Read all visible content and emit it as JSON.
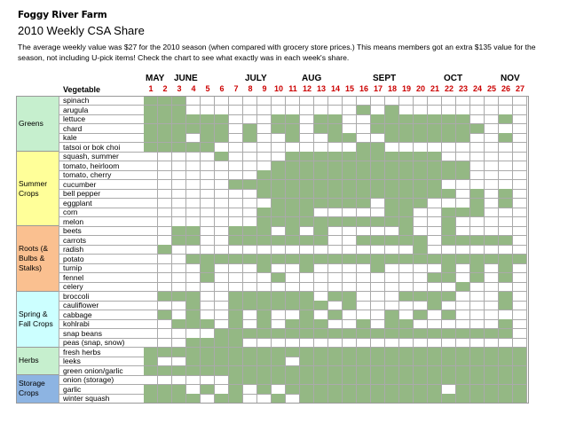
{
  "header": {
    "farm_name": "Foggy River Farm",
    "title": "2010 Weekly CSA Share",
    "description": "The average weekly value was $27 for the 2010 season (when compared with grocery store prices.) This means members got an extra $135 value for the season, not including U-pick items! Check the chart to see what exactly was in each week's share."
  },
  "table": {
    "vegetable_header": "Vegetable",
    "months": [
      {
        "label": "MAY",
        "week": 1
      },
      {
        "label": "JUNE",
        "week": 3
      },
      {
        "label": "JULY",
        "week": 8
      },
      {
        "label": "AUG",
        "week": 12
      },
      {
        "label": "SEPT",
        "week": 17
      },
      {
        "label": "OCT",
        "week": 22
      },
      {
        "label": "NOV",
        "week": 26
      }
    ],
    "weeks": [
      "1",
      "2",
      "3",
      "4",
      "5",
      "6",
      "7",
      "8",
      "9",
      "10",
      "11",
      "12",
      "13",
      "14",
      "15",
      "16",
      "17",
      "18",
      "19",
      "20",
      "21",
      "22",
      "23",
      "24",
      "25",
      "26",
      "27"
    ],
    "colors": {
      "shared": "#94b884",
      "grid": "#aaaaaa",
      "week_numbers": "#cc0000"
    },
    "categories": [
      {
        "name": "Greens",
        "color": "#c6efce",
        "rows": 6
      },
      {
        "name": "Summer Crops",
        "color": "#ffff99",
        "rows": 8
      },
      {
        "name": "Roots (& Bulbs & Stalks)",
        "color": "#fac090",
        "rows": 7
      },
      {
        "name": "Spring & Fall Crops",
        "color": "#ccffff",
        "rows": 6
      },
      {
        "name": "Herbs",
        "color": "#c6efce",
        "rows": 3
      },
      {
        "name": "Storage Crops",
        "color": "#8db4e2",
        "rows": 3
      }
    ],
    "rows": [
      {
        "name": "spinach",
        "weeks": [
          1,
          2,
          3
        ]
      },
      {
        "name": "arugula",
        "weeks": [
          1,
          2,
          3,
          16,
          18
        ]
      },
      {
        "name": "lettuce",
        "weeks": [
          1,
          2,
          3,
          4,
          5,
          6,
          10,
          11,
          13,
          14,
          17,
          18,
          19,
          20,
          21,
          22,
          23,
          26
        ]
      },
      {
        "name": "chard",
        "weeks": [
          1,
          2,
          3,
          4,
          5,
          6,
          8,
          10,
          11,
          13,
          14,
          17,
          18,
          19,
          20,
          21,
          22,
          23,
          24
        ]
      },
      {
        "name": "kale",
        "weeks": [
          1,
          2,
          3,
          5,
          6,
          8,
          11,
          14,
          15,
          18,
          19,
          20,
          21,
          22,
          23,
          26
        ]
      },
      {
        "name": "tatsoi or bok choi",
        "weeks": [
          1,
          2,
          3,
          4,
          5,
          16,
          17
        ]
      },
      {
        "name": "squash, summer",
        "weeks": [
          6,
          11,
          12,
          13,
          14,
          15,
          16,
          17,
          18,
          19,
          20,
          21
        ]
      },
      {
        "name": "tomato, heirloom",
        "weeks": [
          10,
          11,
          12,
          13,
          14,
          15,
          16,
          17,
          18,
          19,
          20,
          21,
          22,
          23
        ]
      },
      {
        "name": "tomato, cherry",
        "weeks": [
          9,
          10,
          11,
          12,
          13,
          14,
          15,
          16,
          17,
          18,
          19,
          20,
          21,
          22,
          23
        ]
      },
      {
        "name": "cucumber",
        "weeks": [
          7,
          8,
          9,
          10,
          11,
          12,
          13,
          14,
          15,
          16,
          17,
          18,
          19,
          20,
          21
        ]
      },
      {
        "name": "bell pepper",
        "weeks": [
          9,
          10,
          11,
          12,
          13,
          14,
          15,
          16,
          17,
          18,
          19,
          20,
          21,
          22,
          24,
          26
        ]
      },
      {
        "name": "eggplant",
        "weeks": [
          10,
          11,
          12,
          13,
          14,
          15,
          16,
          18,
          19,
          20,
          24,
          26
        ]
      },
      {
        "name": "corn",
        "weeks": [
          9,
          10,
          11,
          12,
          18,
          19,
          22,
          23,
          24
        ]
      },
      {
        "name": "melon",
        "weeks": [
          9,
          10,
          11,
          12,
          13,
          14,
          15,
          16,
          17,
          18,
          19,
          22
        ]
      },
      {
        "name": "beets",
        "weeks": [
          3,
          4,
          7,
          8,
          9,
          11,
          13,
          19,
          22
        ]
      },
      {
        "name": "carrots",
        "weeks": [
          3,
          4,
          7,
          8,
          9,
          10,
          11,
          12,
          13,
          16,
          17,
          18,
          19,
          20,
          22,
          23,
          24,
          25,
          26
        ]
      },
      {
        "name": "radish",
        "weeks": [
          2,
          20
        ]
      },
      {
        "name": "potato",
        "weeks": [
          4,
          5,
          6,
          7,
          8,
          9,
          10,
          11,
          12,
          13,
          14,
          15,
          16,
          17,
          18,
          19,
          20,
          21,
          22,
          23,
          24,
          25,
          26,
          27
        ]
      },
      {
        "name": "turnip",
        "weeks": [
          5,
          9,
          12,
          17,
          22,
          24,
          26
        ]
      },
      {
        "name": "fennel",
        "weeks": [
          5,
          10,
          21,
          22,
          24,
          26
        ]
      },
      {
        "name": "celery",
        "weeks": [
          23
        ]
      },
      {
        "name": "broccoli",
        "weeks": [
          2,
          3,
          4,
          7,
          8,
          9,
          10,
          11,
          12,
          14,
          15,
          19,
          20,
          21,
          22,
          26
        ]
      },
      {
        "name": "cauliflower",
        "weeks": [
          4,
          7,
          8,
          9,
          10,
          11,
          12,
          13,
          15,
          21,
          26
        ]
      },
      {
        "name": "cabbage",
        "weeks": [
          2,
          4,
          7,
          9,
          12,
          14,
          18,
          20,
          22
        ]
      },
      {
        "name": "kohlrabi",
        "weeks": [
          3,
          4,
          5,
          7,
          9,
          11,
          12,
          13,
          16,
          18,
          19,
          26
        ]
      },
      {
        "name": "snap beans",
        "weeks": [
          6,
          7,
          8,
          9,
          10,
          11,
          12,
          13,
          14,
          15,
          16,
          17,
          18,
          19,
          20,
          21,
          22,
          23,
          24,
          25,
          26
        ]
      },
      {
        "name": "peas (snap, snow)",
        "weeks": [
          4,
          5,
          6,
          7
        ]
      },
      {
        "name": "fresh herbs",
        "weeks": [
          1,
          2,
          3,
          4,
          5,
          6,
          7,
          8,
          9,
          10,
          11,
          12,
          13,
          14,
          15,
          16,
          17,
          18,
          19,
          20,
          21,
          22,
          23,
          24,
          25,
          26,
          27
        ]
      },
      {
        "name": "leeks",
        "weeks": [
          1,
          4,
          5,
          6,
          7,
          8,
          9,
          10,
          12,
          13,
          14,
          15,
          16,
          17,
          18,
          19,
          20,
          21,
          22,
          23,
          24,
          25,
          26,
          27
        ]
      },
      {
        "name": "green onion/garlic",
        "weeks": [
          1,
          2,
          3,
          4,
          5,
          6,
          7,
          8,
          9,
          10,
          11,
          12,
          13,
          14,
          15,
          16,
          17,
          18,
          19,
          20,
          21,
          22,
          23,
          24,
          25,
          26,
          27
        ]
      },
      {
        "name": "onion (storage)",
        "weeks": [
          7,
          8,
          9,
          10,
          11,
          12,
          13,
          14,
          15,
          16,
          17,
          18,
          19,
          20,
          21,
          22,
          23,
          24,
          25,
          26,
          27
        ]
      },
      {
        "name": "garlic",
        "weeks": [
          1,
          2,
          3,
          5,
          7,
          9,
          11,
          12,
          13,
          14,
          15,
          16,
          17,
          18,
          19,
          20,
          21,
          23,
          24,
          25,
          26,
          27
        ]
      },
      {
        "name": "winter squash",
        "weeks": [
          1,
          2,
          3,
          4,
          6,
          7,
          10,
          12,
          13,
          14,
          15,
          16,
          17,
          18,
          19,
          20,
          21,
          22,
          23,
          24,
          25,
          26,
          27
        ]
      }
    ]
  }
}
